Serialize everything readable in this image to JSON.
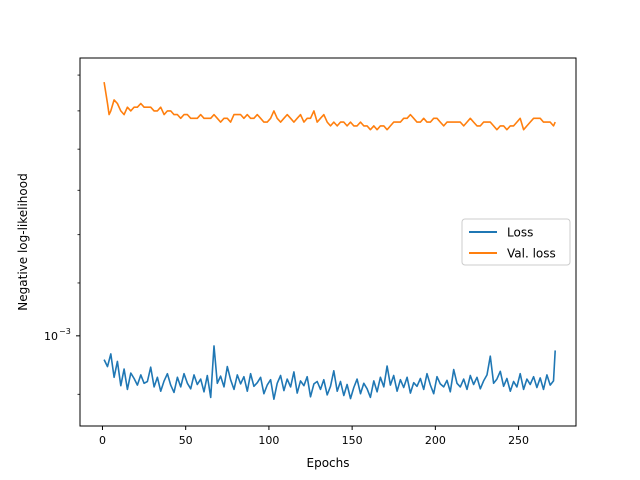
{
  "chart_data": {
    "type": "line",
    "xlabel": "Epochs",
    "ylabel": "Negative log-likelihood",
    "yscale": "log",
    "xlim": [
      -13.5,
      284.5
    ],
    "ylim": [
      0.00085,
      0.00165
    ],
    "xticks": [
      0,
      50,
      100,
      150,
      200,
      250
    ],
    "xtick_labels": [
      "0",
      "50",
      "100",
      "150",
      "200",
      "250"
    ],
    "yticks": [
      0.001
    ],
    "ytick_labels": [
      "10",
      "−3"
    ],
    "legend": {
      "placement": "center-right"
    },
    "grid": false,
    "series": [
      {
        "name": "Loss",
        "color": "#1f77b4",
        "x": [
          1,
          3,
          5,
          7,
          9,
          11,
          13,
          15,
          17,
          19,
          21,
          23,
          25,
          27,
          29,
          31,
          33,
          35,
          37,
          39,
          41,
          43,
          45,
          47,
          49,
          51,
          53,
          55,
          57,
          59,
          61,
          63,
          65,
          67,
          69,
          71,
          73,
          75,
          77,
          79,
          81,
          83,
          85,
          87,
          89,
          91,
          93,
          95,
          97,
          99,
          101,
          103,
          105,
          107,
          109,
          111,
          113,
          115,
          117,
          119,
          121,
          123,
          125,
          127,
          129,
          131,
          133,
          135,
          137,
          139,
          141,
          143,
          145,
          147,
          149,
          151,
          153,
          155,
          157,
          159,
          161,
          163,
          165,
          167,
          169,
          171,
          173,
          175,
          177,
          179,
          181,
          183,
          185,
          187,
          189,
          191,
          193,
          195,
          197,
          199,
          201,
          203,
          205,
          207,
          209,
          211,
          213,
          215,
          217,
          219,
          221,
          223,
          225,
          227,
          229,
          231,
          233,
          235,
          237,
          239,
          241,
          243,
          245,
          247,
          249,
          251,
          253,
          255,
          257,
          259,
          261,
          263,
          265,
          267,
          269,
          271,
          272
        ],
        "y": [
          0.000958,
          0.000946,
          0.000968,
          0.000928,
          0.000955,
          0.000914,
          0.000942,
          0.000908,
          0.000935,
          0.000926,
          0.000915,
          0.000932,
          0.000918,
          0.000921,
          0.000945,
          0.000912,
          0.000928,
          0.000905,
          0.000922,
          0.000934,
          0.000915,
          0.000903,
          0.000928,
          0.000912,
          0.000934,
          0.000918,
          0.000909,
          0.000932,
          0.000916,
          0.000925,
          0.000904,
          0.000931,
          0.000895,
          0.000982,
          0.000918,
          0.00093,
          0.000912,
          0.000946,
          0.000924,
          0.000908,
          0.000932,
          0.000917,
          0.000929,
          0.000905,
          0.000934,
          0.000913,
          0.000919,
          0.000928,
          0.000901,
          0.000915,
          0.000924,
          0.000892,
          0.000918,
          0.000931,
          0.000906,
          0.000925,
          0.000912,
          0.000937,
          0.000902,
          0.000922,
          0.000914,
          0.000929,
          0.000896,
          0.000917,
          0.000921,
          0.000908,
          0.000924,
          0.000899,
          0.000913,
          0.000939,
          0.000905,
          0.000921,
          0.000898,
          0.000916,
          0.000893,
          0.000911,
          0.000925,
          0.000901,
          0.000918,
          0.000909,
          0.000895,
          0.000922,
          0.000904,
          0.000928,
          0.000912,
          0.000947,
          0.000915,
          0.000931,
          0.000905,
          0.000924,
          0.000911,
          0.000928,
          0.000902,
          0.000919,
          0.000913,
          0.000926,
          0.000908,
          0.000934,
          0.000915,
          0.000901,
          0.000929,
          0.000917,
          0.000912,
          0.000923,
          0.000904,
          0.000941,
          0.000918,
          0.000912,
          0.000925,
          0.000908,
          0.000931,
          0.000916,
          0.000928,
          0.000909,
          0.000922,
          0.000932,
          0.000964,
          0.000918,
          0.000925,
          0.000938,
          0.000913,
          0.000926,
          0.000905,
          0.000921,
          0.000912,
          0.000934,
          0.000908,
          0.000925,
          0.000916,
          0.000929,
          0.000911,
          0.000927,
          0.000908,
          0.000932,
          0.000915,
          0.000922,
          0.000974
        ]
      },
      {
        "name": "Val. loss",
        "color": "#ff7f0e",
        "x": [
          1,
          2,
          3,
          4,
          5,
          7,
          9,
          11,
          13,
          15,
          17,
          19,
          21,
          23,
          25,
          27,
          29,
          31,
          33,
          35,
          37,
          39,
          41,
          43,
          45,
          47,
          49,
          51,
          53,
          55,
          57,
          59,
          61,
          63,
          65,
          67,
          69,
          71,
          73,
          75,
          77,
          79,
          81,
          83,
          85,
          87,
          89,
          91,
          93,
          95,
          97,
          99,
          101,
          103,
          105,
          107,
          109,
          111,
          113,
          115,
          117,
          119,
          121,
          123,
          125,
          127,
          129,
          131,
          133,
          135,
          137,
          139,
          141,
          143,
          145,
          147,
          149,
          151,
          153,
          155,
          157,
          159,
          161,
          163,
          165,
          167,
          169,
          171,
          173,
          175,
          177,
          179,
          181,
          183,
          185,
          187,
          189,
          191,
          193,
          195,
          197,
          199,
          201,
          203,
          205,
          207,
          209,
          211,
          213,
          215,
          217,
          219,
          221,
          223,
          225,
          227,
          229,
          231,
          233,
          235,
          237,
          239,
          241,
          243,
          245,
          247,
          249,
          251,
          253,
          255,
          257,
          259,
          261,
          263,
          265,
          267,
          269,
          271,
          272
        ],
        "y": [
          0.00158,
          0.00155,
          0.00152,
          0.00149,
          0.0015,
          0.00153,
          0.00152,
          0.0015,
          0.00149,
          0.00151,
          0.0015,
          0.00151,
          0.00151,
          0.00152,
          0.00151,
          0.00151,
          0.00151,
          0.0015,
          0.0015,
          0.00151,
          0.00149,
          0.0015,
          0.0015,
          0.00149,
          0.00149,
          0.00148,
          0.00149,
          0.00149,
          0.00148,
          0.00148,
          0.00148,
          0.00149,
          0.00148,
          0.00148,
          0.00148,
          0.00149,
          0.00148,
          0.00147,
          0.00148,
          0.00148,
          0.00147,
          0.00149,
          0.00149,
          0.00149,
          0.00148,
          0.00149,
          0.00148,
          0.00148,
          0.00149,
          0.00148,
          0.00147,
          0.00147,
          0.00148,
          0.0015,
          0.00148,
          0.00147,
          0.00148,
          0.00149,
          0.00148,
          0.00147,
          0.00148,
          0.00149,
          0.00147,
          0.00148,
          0.00148,
          0.0015,
          0.00147,
          0.00148,
          0.00149,
          0.00147,
          0.00146,
          0.00147,
          0.00146,
          0.00147,
          0.00147,
          0.00146,
          0.00147,
          0.00146,
          0.00146,
          0.00147,
          0.00146,
          0.00146,
          0.00145,
          0.00146,
          0.00145,
          0.00146,
          0.00146,
          0.00145,
          0.00146,
          0.00147,
          0.00147,
          0.00147,
          0.00148,
          0.00148,
          0.00149,
          0.00148,
          0.00147,
          0.00147,
          0.00148,
          0.00147,
          0.00147,
          0.00148,
          0.00148,
          0.00147,
          0.00146,
          0.00147,
          0.00147,
          0.00147,
          0.00147,
          0.00147,
          0.00146,
          0.00147,
          0.00148,
          0.00147,
          0.00146,
          0.00146,
          0.00147,
          0.00147,
          0.00147,
          0.00146,
          0.00145,
          0.00146,
          0.00146,
          0.00145,
          0.00146,
          0.00146,
          0.00147,
          0.00148,
          0.00145,
          0.00146,
          0.00147,
          0.00148,
          0.00148,
          0.00148,
          0.00147,
          0.00147,
          0.00147,
          0.00146,
          0.00147
        ]
      }
    ]
  }
}
